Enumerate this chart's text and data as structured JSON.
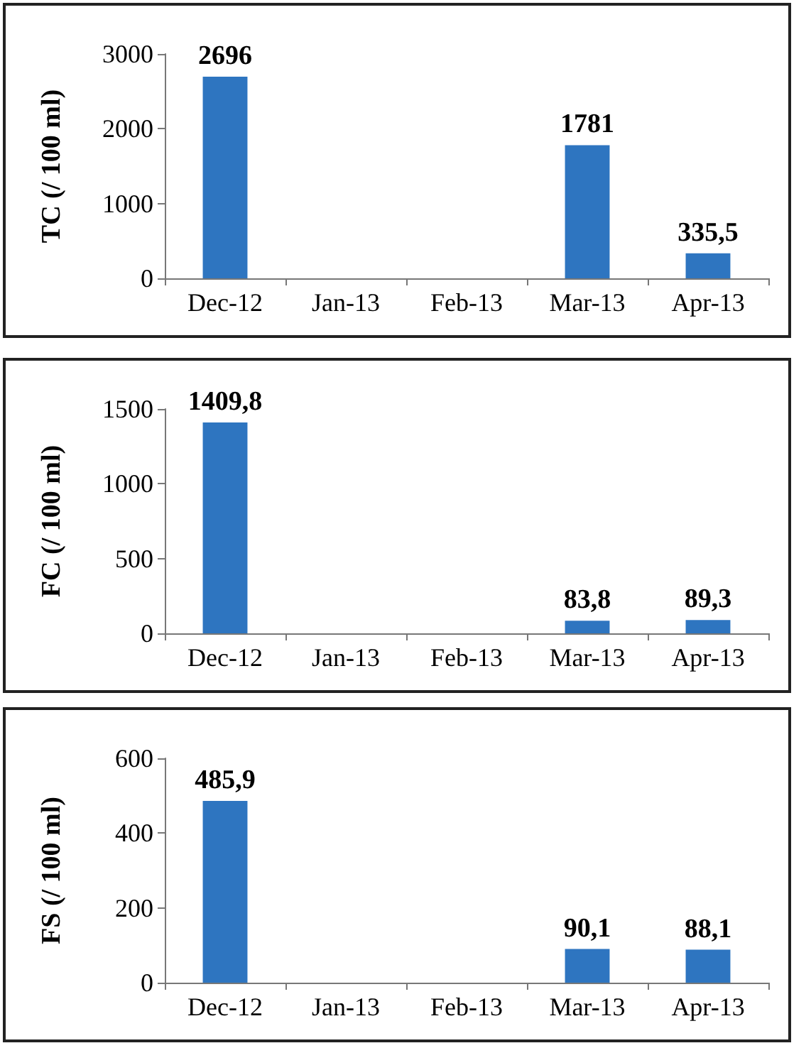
{
  "chart_data": [
    {
      "type": "bar",
      "ylabel": "TC (/ 100 ml)",
      "categories": [
        "Dec-12",
        "Jan-13",
        "Feb-13",
        "Mar-13",
        "Apr-13"
      ],
      "values": [
        2696,
        null,
        null,
        1781,
        335.5
      ],
      "value_labels": [
        "2696",
        null,
        null,
        "1781",
        "335,5"
      ],
      "color": "#2e75c0",
      "ylim": [
        0,
        3000
      ],
      "yticks": [
        0,
        1000,
        2000,
        3000
      ],
      "grid": false
    },
    {
      "type": "bar",
      "ylabel": "FC (/ 100 ml)",
      "categories": [
        "Dec-12",
        "Jan-13",
        "Feb-13",
        "Mar-13",
        "Apr-13"
      ],
      "values": [
        1409.8,
        null,
        null,
        83.8,
        89.3
      ],
      "value_labels": [
        "1409,8",
        null,
        null,
        "83,8",
        "89,3"
      ],
      "color": "#2e75c0",
      "ylim": [
        0,
        1500
      ],
      "yticks": [
        0,
        500,
        1000,
        1500
      ],
      "grid": false
    },
    {
      "type": "bar",
      "ylabel": "FS (/ 100 ml)",
      "categories": [
        "Dec-12",
        "Jan-13",
        "Feb-13",
        "Mar-13",
        "Apr-13"
      ],
      "values": [
        485.9,
        null,
        null,
        90.1,
        88.1
      ],
      "value_labels": [
        "485,9",
        null,
        null,
        "90,1",
        "88,1"
      ],
      "color": "#2e75c0",
      "ylim": [
        0,
        600
      ],
      "yticks": [
        0,
        200,
        400,
        600
      ],
      "grid": false
    }
  ]
}
